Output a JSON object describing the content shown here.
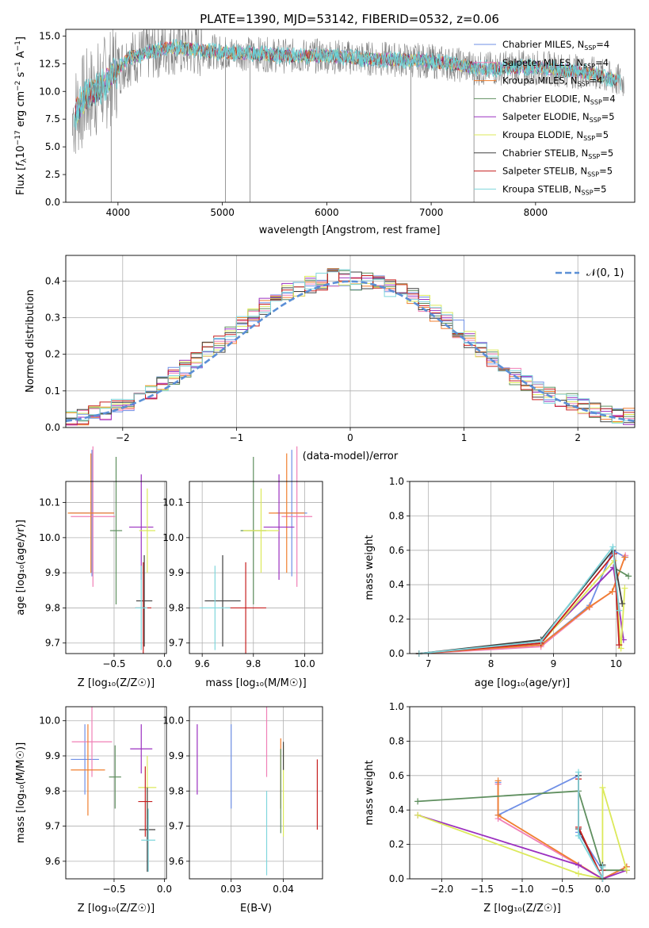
{
  "colors": [
    "#6f8fe6",
    "#f07fb6",
    "#f07f2f",
    "#5f8f5f",
    "#9b30c0",
    "#dce95a",
    "#404040",
    "#c61f1f",
    "#7fd6dc"
  ],
  "line_colors": {
    "gray": "#808080",
    "teal": "#6ad2d6",
    "dashed": "#5b8fd6",
    "grid": "#b0b0b0"
  },
  "charts": {
    "spectrum": {
      "title": "PLATE=1390, MJD=53142, FIBERID=0532, z=0.06",
      "xlabel": "wavelength [Angstrom, rest frame]",
      "ylabel_parts": [
        "Flux [",
        "f",
        "λ",
        "10",
        "−17",
        " erg cm",
        "−2",
        " s",
        "−1",
        " A",
        "−1",
        "]"
      ],
      "xticks": [
        "4000",
        "5000",
        "6000",
        "7000",
        "8000"
      ],
      "yticks": [
        "0.0",
        "2.5",
        "5.0",
        "7.5",
        "10.0",
        "12.5",
        "15.0"
      ],
      "legend": [
        {
          "label": "Chabrier MILES, N",
          "n": "4"
        },
        {
          "label": "Salpeter MILES, N",
          "n": "4"
        },
        {
          "label": "Kroupa MILES, N",
          "n": "4"
        },
        {
          "label": "Chabrier ELODIE, N",
          "n": "4"
        },
        {
          "label": "Salpeter ELODIE, N",
          "n": "5"
        },
        {
          "label": "Kroupa ELODIE, N",
          "n": "5"
        },
        {
          "label": "Chabrier STELIB, N",
          "n": "5"
        },
        {
          "label": "Salpeter STELIB, N",
          "n": "5"
        },
        {
          "label": "Kroupa STELIB, N",
          "n": "5"
        }
      ],
      "legend_sub": "SSP"
    },
    "hist": {
      "xlabel": "(data-model)/error",
      "ylabel": "Normed distribution",
      "xticks": [
        "−2",
        "−1",
        "0",
        "1",
        "2"
      ],
      "yticks": [
        "0.0",
        "0.1",
        "0.2",
        "0.3",
        "0.4"
      ],
      "legend_label": "𝒩(0, 1)"
    },
    "age_Z": {
      "xlabel_main": "Z [log",
      "xlabel_sub": "10",
      "xlabel_rest": "(Z/Z",
      "ylabel": "age  [log₁₀(age/yr)]",
      "xticks": [
        "−0.5",
        "0.0"
      ],
      "yticks": [
        "9.7",
        "9.8",
        "9.9",
        "10.0",
        "10.1"
      ]
    },
    "age_mass": {
      "xlabel": "mass [log₁₀(M/M☉)]",
      "xticks": [
        "9.6",
        "9.8",
        "10.0"
      ],
      "yticks": [
        "9.7",
        "9.8",
        "9.9",
        "10.0",
        "10.1"
      ]
    },
    "weight_age": {
      "xlabel": "age  [log₁₀(age/yr)]",
      "ylabel": "mass weight",
      "xticks": [
        "7",
        "8",
        "9",
        "10"
      ],
      "yticks": [
        "0.0",
        "0.2",
        "0.4",
        "0.6",
        "0.8",
        "1.0"
      ]
    },
    "mass_Z": {
      "xlabel": "Z [log₁₀(Z/Z☉)]",
      "ylabel": "mass [log₁₀(M/M☉)]",
      "xticks": [
        "−0.5",
        "0.0"
      ],
      "yticks": [
        "9.6",
        "9.7",
        "9.8",
        "9.9",
        "10.0"
      ]
    },
    "mass_EBV": {
      "xlabel": "E(B-V)",
      "xticks": [
        "0.03",
        "0.04"
      ],
      "yticks": [
        "9.6",
        "9.7",
        "9.8",
        "9.9",
        "10.0"
      ]
    },
    "weight_Z": {
      "xlabel": "Z [log₁₀(Z/Z☉)]",
      "ylabel": "mass weight",
      "xticks": [
        "−2.0",
        "−1.5",
        "−1.0",
        "−0.5",
        "0.0"
      ],
      "yticks": [
        "0.0",
        "0.2",
        "0.4",
        "0.6",
        "0.8",
        "1.0"
      ]
    }
  },
  "chart_data": [
    {
      "type": "line",
      "title": "PLATE=1390, MJD=53142, FIBERID=0532, z=0.06",
      "xlabel": "wavelength [Angstrom, rest frame]",
      "ylabel": "Flux [fλ10−17 erg cm−2 s−1 A−1]",
      "xlim": [
        3500,
        8950
      ],
      "ylim": [
        0,
        15.6
      ],
      "series": [
        {
          "name": "Chabrier MILES, NSSP=4"
        },
        {
          "name": "Salpeter MILES, NSSP=4"
        },
        {
          "name": "Kroupa MILES, NSSP=4"
        },
        {
          "name": "Chabrier ELODIE, NSSP=4"
        },
        {
          "name": "Salpeter ELODIE, NSSP=5"
        },
        {
          "name": "Kroupa ELODIE, NSSP=5"
        },
        {
          "name": "Chabrier STELIB, NSSP=5"
        },
        {
          "name": "Salpeter STELIB, NSSP=5"
        },
        {
          "name": "Kroupa STELIB, NSSP=5"
        }
      ],
      "continuum": {
        "x": [
          3580,
          3700,
          3850,
          3950,
          4100,
          4300,
          4500,
          4700,
          5000,
          5300,
          5600,
          6000,
          6300,
          6600,
          6900,
          7200,
          7500,
          7800,
          8100,
          8400,
          8600,
          8800
        ],
        "y": [
          8.0,
          9.5,
          10.5,
          11.5,
          13.0,
          13.5,
          14.0,
          13.8,
          13.5,
          13.4,
          13.2,
          13.2,
          13.0,
          12.9,
          12.8,
          12.5,
          12.0,
          12.2,
          12.1,
          11.8,
          11.5,
          10.9
        ]
      },
      "grid": false
    },
    {
      "type": "bar",
      "xlabel": "(data-model)/error",
      "ylabel": "Normed distribution",
      "xlim": [
        -2.5,
        2.5
      ],
      "ylim": [
        0,
        0.47
      ],
      "legend": "top-right",
      "grid": true,
      "bin_centers": [
        -2.45,
        -2.35,
        -2.25,
        -2.15,
        -2.05,
        -1.95,
        -1.85,
        -1.75,
        -1.65,
        -1.55,
        -1.45,
        -1.35,
        -1.25,
        -1.15,
        -1.05,
        -0.95,
        -0.85,
        -0.75,
        -0.65,
        -0.55,
        -0.45,
        -0.35,
        -0.25,
        -0.15,
        -0.05,
        0.05,
        0.15,
        0.25,
        0.35,
        0.45,
        0.55,
        0.65,
        0.75,
        0.85,
        0.95,
        1.05,
        1.15,
        1.25,
        1.35,
        1.45,
        1.55,
        1.65,
        1.75,
        1.85,
        1.95,
        2.05,
        2.15,
        2.25,
        2.35,
        2.45
      ],
      "values": [
        0.025,
        0.03,
        0.04,
        0.045,
        0.06,
        0.07,
        0.08,
        0.095,
        0.12,
        0.14,
        0.16,
        0.18,
        0.21,
        0.23,
        0.25,
        0.28,
        0.3,
        0.33,
        0.35,
        0.37,
        0.38,
        0.39,
        0.4,
        0.41,
        0.41,
        0.4,
        0.4,
        0.39,
        0.38,
        0.37,
        0.36,
        0.34,
        0.31,
        0.29,
        0.27,
        0.24,
        0.21,
        0.19,
        0.17,
        0.14,
        0.12,
        0.1,
        0.09,
        0.08,
        0.07,
        0.055,
        0.05,
        0.04,
        0.035,
        0.03
      ],
      "series": [
        {
          "name": "𝒩(0, 1)",
          "type": "line",
          "dashed": true
        }
      ]
    },
    {
      "type": "scatter",
      "xlabel": "Z [log10(Z/Z☉)]",
      "ylabel": "age  [log10(age/yr)]",
      "xlim": [
        -0.98,
        0.02
      ],
      "ylim": [
        9.67,
        10.16
      ],
      "grid": true,
      "points": [
        {
          "x": -0.72,
          "y": 10.07,
          "xerr": 0.22,
          "yerr": 0.18
        },
        {
          "x": -0.71,
          "y": 10.06,
          "xerr": 0.22,
          "yerr": 0.2
        },
        {
          "x": -0.73,
          "y": 10.07,
          "xerr": 0.23,
          "yerr": 0.17
        },
        {
          "x": -0.48,
          "y": 10.02,
          "xerr": 0.06,
          "yerr": 0.21
        },
        {
          "x": -0.23,
          "y": 10.03,
          "xerr": 0.12,
          "yerr": 0.15
        },
        {
          "x": -0.17,
          "y": 10.02,
          "xerr": 0.08,
          "yerr": 0.12
        },
        {
          "x": -0.2,
          "y": 9.82,
          "xerr": 0.08,
          "yerr": 0.13
        },
        {
          "x": -0.21,
          "y": 9.8,
          "xerr": 0.08,
          "yerr": 0.13
        },
        {
          "x": -0.23,
          "y": 9.8,
          "xerr": 0.06,
          "yerr": 0.12
        }
      ]
    },
    {
      "type": "scatter",
      "xlabel": "mass [log10(M/M☉)]",
      "xlim": [
        9.55,
        10.07
      ],
      "ylim": [
        9.67,
        10.16
      ],
      "grid": true,
      "points": [
        {
          "x": 9.95,
          "y": 10.07,
          "xerr": 0.06,
          "yerr": 0.18
        },
        {
          "x": 9.97,
          "y": 10.06,
          "xerr": 0.06,
          "yerr": 0.2
        },
        {
          "x": 9.93,
          "y": 10.07,
          "xerr": 0.07,
          "yerr": 0.17
        },
        {
          "x": 9.8,
          "y": 10.02,
          "xerr": 0.05,
          "yerr": 0.21
        },
        {
          "x": 9.9,
          "y": 10.03,
          "xerr": 0.06,
          "yerr": 0.15
        },
        {
          "x": 9.83,
          "y": 10.02,
          "xerr": 0.07,
          "yerr": 0.12
        },
        {
          "x": 9.68,
          "y": 9.82,
          "xerr": 0.07,
          "yerr": 0.13
        },
        {
          "x": 9.77,
          "y": 9.8,
          "xerr": 0.08,
          "yerr": 0.13
        },
        {
          "x": 9.65,
          "y": 9.8,
          "xerr": 0.06,
          "yerr": 0.12
        }
      ]
    },
    {
      "type": "line",
      "xlabel": "age  [log10(age/yr)]",
      "ylabel": "mass weight",
      "xlim": [
        6.7,
        10.3
      ],
      "ylim": [
        0,
        1
      ],
      "grid": true,
      "series": [
        {
          "x": [
            6.85,
            8.8,
            9.58,
            9.95,
            10.15
          ],
          "y": [
            0.0,
            0.05,
            0.28,
            0.6,
            0.56
          ]
        },
        {
          "x": [
            6.85,
            8.8,
            9.58,
            9.94,
            10.15
          ],
          "y": [
            0.0,
            0.04,
            0.27,
            0.36,
            0.57
          ]
        },
        {
          "x": [
            6.85,
            8.8,
            9.57,
            9.94,
            10.14
          ],
          "y": [
            0.0,
            0.05,
            0.27,
            0.36,
            0.56
          ]
        },
        {
          "x": [
            6.85,
            8.8,
            9.96,
            10.2
          ],
          "y": [
            0.0,
            0.07,
            0.5,
            0.45
          ]
        },
        {
          "x": [
            6.85,
            8.8,
            9.96,
            10.12
          ],
          "y": [
            0.0,
            0.07,
            0.5,
            0.08
          ]
        },
        {
          "x": [
            6.85,
            8.8,
            9.97,
            10.08,
            10.14
          ],
          "y": [
            0.0,
            0.06,
            0.54,
            0.03,
            0.38
          ]
        },
        {
          "x": [
            6.85,
            8.8,
            9.95,
            10.1
          ],
          "y": [
            0.0,
            0.08,
            0.6,
            0.29
          ]
        },
        {
          "x": [
            6.85,
            8.8,
            9.97,
            10.05
          ],
          "y": [
            0.0,
            0.06,
            0.58,
            0.05
          ]
        },
        {
          "x": [
            6.85,
            8.8,
            9.95,
            10.05
          ],
          "y": [
            0.0,
            0.07,
            0.62,
            0.25
          ]
        }
      ]
    },
    {
      "type": "scatter",
      "xlabel": "Z [log10(Z/Z☉)]",
      "ylabel": "mass [log10(M/M☉)]",
      "xlim": [
        -0.98,
        0.02
      ],
      "ylim": [
        9.55,
        10.04
      ],
      "grid": true,
      "points": [
        {
          "x": -0.79,
          "y": 9.89,
          "xerr": 0.14,
          "yerr": 0.1
        },
        {
          "x": -0.72,
          "y": 9.94,
          "xerr": 0.2,
          "yerr": 0.1
        },
        {
          "x": -0.76,
          "y": 9.86,
          "xerr": 0.17,
          "yerr": 0.13
        },
        {
          "x": -0.49,
          "y": 9.84,
          "xerr": 0.06,
          "yerr": 0.09
        },
        {
          "x": -0.23,
          "y": 9.92,
          "xerr": 0.11,
          "yerr": 0.07
        },
        {
          "x": -0.17,
          "y": 9.81,
          "xerr": 0.09,
          "yerr": 0.09
        },
        {
          "x": -0.17,
          "y": 9.69,
          "xerr": 0.08,
          "yerr": 0.12
        },
        {
          "x": -0.19,
          "y": 9.77,
          "xerr": 0.07,
          "yerr": 0.1
        },
        {
          "x": -0.16,
          "y": 9.66,
          "xerr": 0.07,
          "yerr": 0.09
        }
      ]
    },
    {
      "type": "scatter",
      "xlabel": "E(B-V)",
      "xlim": [
        0.022,
        0.0475
      ],
      "ylim": [
        9.55,
        10.04
      ],
      "grid": true,
      "points": [
        {
          "x": 0.03,
          "y": 9.87,
          "yerr": 0.12
        },
        {
          "x": 0.0368,
          "y": 9.94,
          "yerr": 0.1
        },
        {
          "x": 0.0395,
          "y": 9.85,
          "yerr": 0.1
        },
        {
          "x": 0.0395,
          "y": 9.8,
          "yerr": 0.12
        },
        {
          "x": 0.0235,
          "y": 9.89,
          "yerr": 0.1
        },
        {
          "x": 0.04,
          "y": 9.8,
          "yerr": 0.13
        },
        {
          "x": 0.04,
          "y": 9.9,
          "yerr": 0.04
        },
        {
          "x": 0.0465,
          "y": 9.79,
          "yerr": 0.1
        },
        {
          "x": 0.0368,
          "y": 9.68,
          "yerr": 0.12
        }
      ]
    },
    {
      "type": "line",
      "xlabel": "Z [log10(Z/Z☉)]",
      "ylabel": "mass weight",
      "xlim": [
        -2.4,
        0.4
      ],
      "ylim": [
        0,
        1
      ],
      "grid": true,
      "series": [
        {
          "x": [
            -1.3,
            -1.3,
            -0.3,
            -0.3,
            0.0,
            0.0,
            0.3
          ],
          "y": [
            0.56,
            0.37,
            0.6,
            0.27,
            0.05,
            0.0,
            0.07
          ]
        },
        {
          "x": [
            -1.3,
            -1.3,
            0.0,
            0.3
          ],
          "y": [
            0.55,
            0.35,
            0.0,
            0.07
          ]
        },
        {
          "x": [
            -1.3,
            -1.3,
            0.0,
            0.3
          ],
          "y": [
            0.57,
            0.37,
            0.0,
            0.07
          ]
        },
        {
          "x": [
            -2.3,
            -0.3,
            0.0,
            0.3
          ],
          "y": [
            0.45,
            0.51,
            0.05,
            0.05
          ]
        },
        {
          "x": [
            -2.3,
            -0.3,
            0.0,
            0.3
          ],
          "y": [
            0.37,
            0.08,
            0.0,
            0.05
          ]
        },
        {
          "x": [
            -2.3,
            -0.3,
            0.0,
            0.0,
            0.3
          ],
          "y": [
            0.37,
            0.03,
            0.0,
            0.53,
            0.05
          ]
        },
        {
          "x": [
            -0.3,
            -0.3,
            0.0,
            0.0
          ],
          "y": [
            0.6,
            0.29,
            0.0,
            0.08
          ]
        },
        {
          "x": [
            -0.3,
            -0.3,
            0.0,
            0.0
          ],
          "y": [
            0.58,
            0.3,
            0.0,
            0.05
          ]
        },
        {
          "x": [
            -0.3,
            -0.3,
            0.0,
            0.0
          ],
          "y": [
            0.62,
            0.25,
            0.0,
            0.07
          ]
        }
      ]
    }
  ]
}
